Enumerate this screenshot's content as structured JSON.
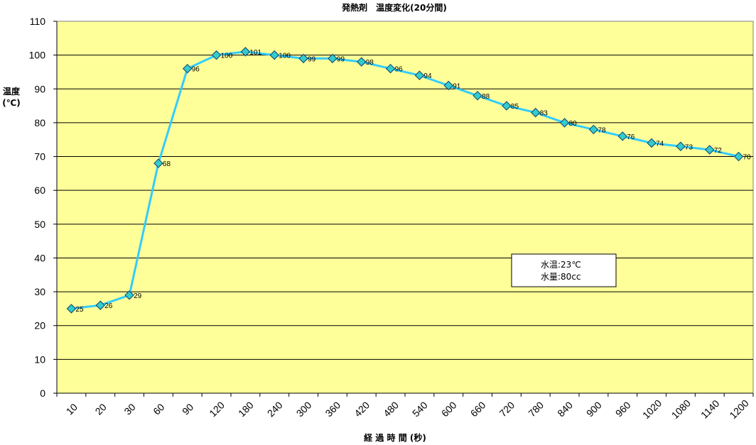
{
  "chart_data": {
    "type": "line",
    "title": "発熱剤　温度変化(20分間)",
    "xlabel": "経 過 時 間 (秒)",
    "ylabel_line1": "温度",
    "ylabel_line2": "(℃)",
    "categories": [
      "10",
      "20",
      "30",
      "60",
      "90",
      "120",
      "180",
      "240",
      "300",
      "360",
      "420",
      "480",
      "540",
      "600",
      "660",
      "720",
      "780",
      "840",
      "900",
      "960",
      "1020",
      "1080",
      "1140",
      "1200"
    ],
    "values": [
      25,
      26,
      29,
      68,
      96,
      100,
      101,
      100,
      99,
      99,
      98,
      96,
      94,
      91,
      88,
      85,
      83,
      80,
      78,
      76,
      74,
      73,
      72,
      70
    ],
    "ylim": [
      0,
      110
    ],
    "yticks": [
      0,
      10,
      20,
      30,
      40,
      50,
      60,
      70,
      80,
      90,
      100,
      110
    ],
    "grid": true,
    "data_labels": true,
    "note": {
      "line1": "水温:23℃",
      "line2": "水量:80cc"
    },
    "colors": {
      "plot_bg": "#ffff99",
      "line": "#33ccff",
      "marker_fill": "#33cccc",
      "marker_stroke": "#0f3f6f"
    }
  }
}
